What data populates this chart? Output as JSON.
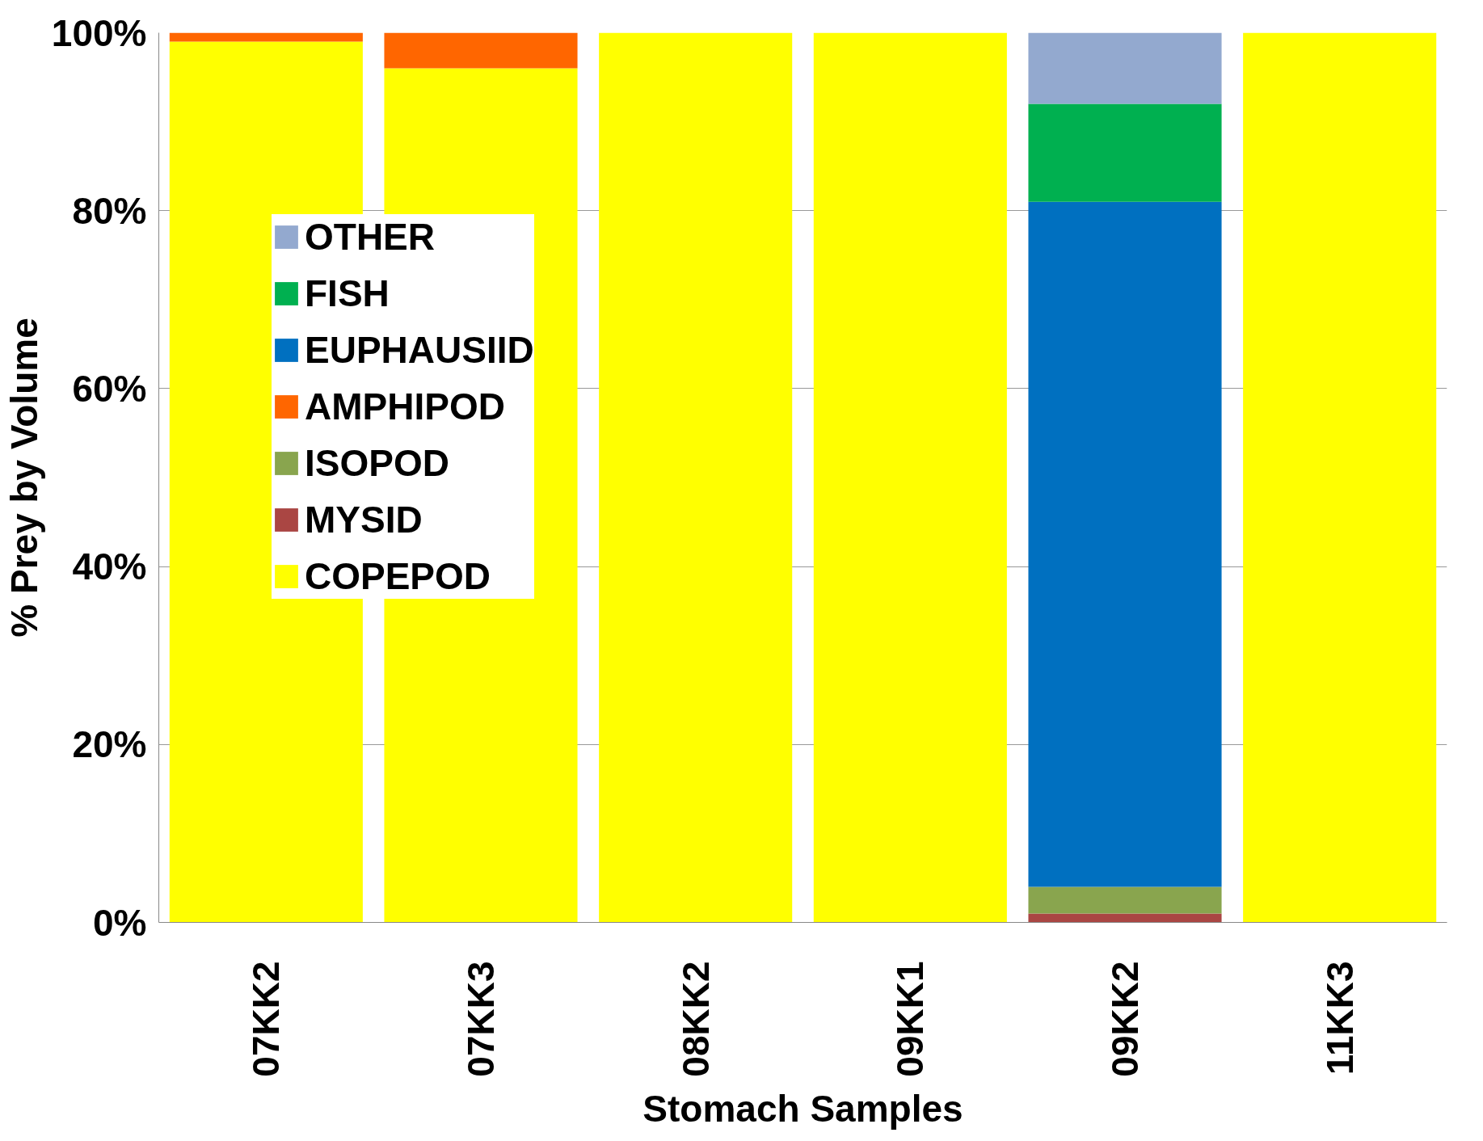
{
  "chart_data": {
    "type": "bar",
    "stacked": true,
    "xlabel": "Stomach Samples",
    "ylabel": "% Prey by Volume",
    "categories": [
      "07KK2",
      "07KK3",
      "08KK2",
      "09KK1",
      "09KK2",
      "11KK3"
    ],
    "series": [
      {
        "name": "COPEPOD",
        "color": "#ffff00",
        "values": [
          99,
          96,
          100,
          100,
          0,
          100
        ]
      },
      {
        "name": "MYSID",
        "color": "#aa4643",
        "values": [
          0,
          0,
          0,
          0,
          1,
          0
        ]
      },
      {
        "name": "ISOPOD",
        "color": "#89a54e",
        "values": [
          0,
          0,
          0,
          0,
          3,
          0
        ]
      },
      {
        "name": "AMPHIPOD",
        "color": "#ff6600",
        "values": [
          1,
          4,
          0,
          0,
          0,
          0
        ]
      },
      {
        "name": "EUPHAUSIID",
        "color": "#0070c0",
        "values": [
          0,
          0,
          0,
          0,
          77,
          0
        ]
      },
      {
        "name": "FISH",
        "color": "#00b050",
        "values": [
          0,
          0,
          0,
          0,
          11,
          0
        ]
      },
      {
        "name": "OTHER",
        "color": "#93a9cf",
        "values": [
          0,
          0,
          0,
          0,
          8,
          0
        ]
      }
    ],
    "ylim": [
      0,
      100
    ],
    "yticks": [
      {
        "value": 0,
        "label": "0%"
      },
      {
        "value": 20,
        "label": "20%"
      },
      {
        "value": 40,
        "label": "40%"
      },
      {
        "value": 60,
        "label": "60%"
      },
      {
        "value": 80,
        "label": "80%"
      },
      {
        "value": 100,
        "label": "100%"
      }
    ],
    "grid": "y",
    "legend": "top left"
  }
}
